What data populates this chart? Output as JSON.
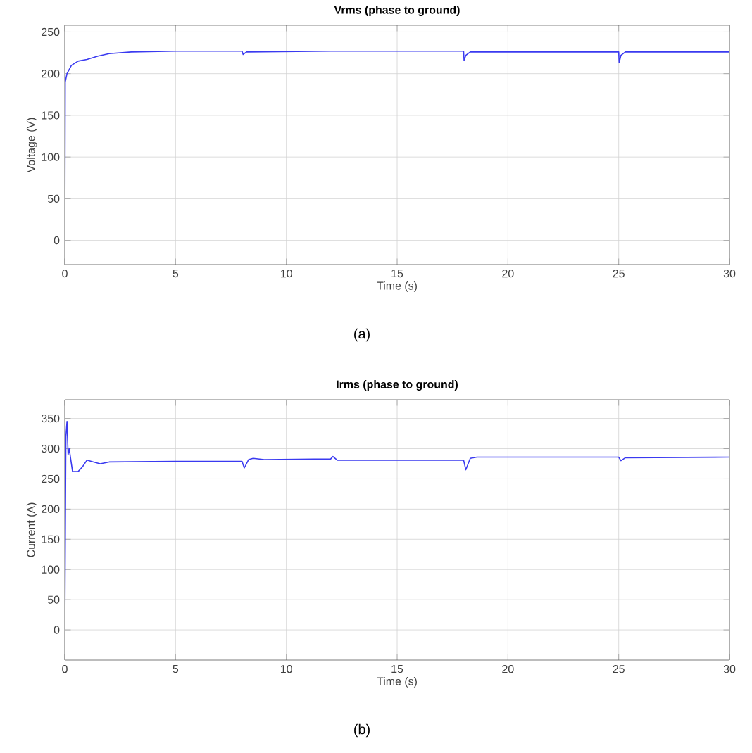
{
  "chart_data": [
    {
      "type": "line",
      "title": "Vrms (phase to ground)",
      "xlabel": "Time (s)",
      "ylabel": "Voltage (V)",
      "xlim": [
        0,
        30
      ],
      "ylim": [
        -29,
        258
      ],
      "xticks": [
        0,
        5,
        10,
        15,
        20,
        25,
        30
      ],
      "yticks": [
        0,
        50,
        100,
        150,
        200,
        250
      ],
      "grid": true,
      "annotations": [
        "(a)"
      ],
      "series": [
        {
          "color": "#3a3af0",
          "x": [
            0,
            0.02,
            0.1,
            0.3,
            0.6,
            1,
            1.5,
            2,
            3,
            5,
            8,
            8.05,
            8.2,
            12,
            18,
            18.02,
            18.1,
            18.3,
            25,
            25.02,
            25.1,
            25.3,
            30
          ],
          "values": [
            0,
            190,
            200,
            210,
            215,
            217,
            221,
            224,
            226,
            227,
            227,
            223,
            226,
            227,
            227,
            216,
            222,
            226,
            226,
            213,
            222,
            226,
            226
          ]
        }
      ]
    },
    {
      "type": "line",
      "title": "Irms (phase to ground)",
      "xlabel": "Time (s)",
      "ylabel": "Current (A)",
      "xlim": [
        0,
        30
      ],
      "ylim": [
        -50,
        381
      ],
      "xticks": [
        0,
        5,
        10,
        15,
        20,
        25,
        30
      ],
      "yticks": [
        0,
        50,
        100,
        150,
        200,
        250,
        300,
        350
      ],
      "grid": true,
      "annotations": [
        "(b)"
      ],
      "series": [
        {
          "color": "#3a3af0",
          "x": [
            0,
            0.05,
            0.1,
            0.15,
            0.2,
            0.35,
            0.6,
            0.8,
            1.0,
            1.3,
            1.6,
            2,
            5,
            8,
            8.1,
            8.3,
            8.5,
            9,
            12,
            12.1,
            12.3,
            15,
            18,
            18.1,
            18.3,
            18.6,
            25,
            25.1,
            25.3,
            30
          ],
          "values": [
            0,
            320,
            345,
            290,
            300,
            262,
            262,
            270,
            281,
            278,
            275,
            278,
            279,
            279,
            268,
            282,
            284,
            282,
            283,
            287,
            281,
            281,
            281,
            265,
            284,
            286,
            286,
            280,
            285,
            286
          ]
        }
      ]
    }
  ]
}
